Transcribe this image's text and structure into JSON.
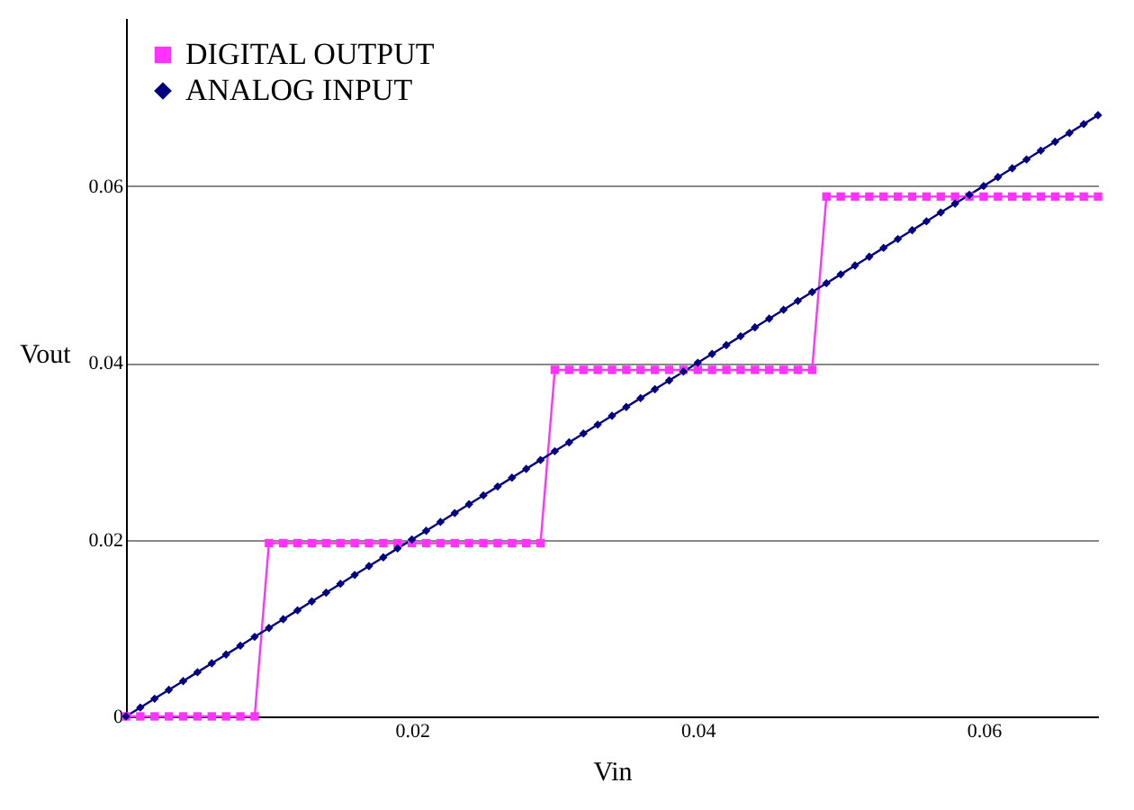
{
  "chart_data": {
    "type": "line",
    "xlabel": "Vin",
    "ylabel": "Vout",
    "x": [
      0,
      0.001,
      0.002,
      0.003,
      0.004,
      0.005,
      0.006,
      0.007,
      0.008,
      0.009,
      0.01,
      0.011,
      0.012,
      0.013,
      0.014,
      0.015,
      0.016,
      0.017,
      0.018,
      0.019,
      0.02,
      0.021,
      0.022,
      0.023,
      0.024,
      0.025,
      0.026,
      0.027,
      0.028,
      0.029,
      0.03,
      0.031,
      0.032,
      0.033,
      0.034,
      0.035,
      0.036,
      0.037,
      0.038,
      0.039,
      0.04,
      0.041,
      0.042,
      0.043,
      0.044,
      0.045,
      0.046,
      0.047,
      0.048,
      0.049,
      0.05,
      0.051,
      0.052,
      0.053,
      0.054,
      0.055,
      0.056,
      0.057,
      0.058,
      0.059,
      0.06,
      0.061,
      0.062,
      0.063,
      0.064,
      0.065,
      0.066,
      0.067,
      0.068
    ],
    "series": [
      {
        "name": "DIGITAL OUTPUT",
        "color": "#ff33ff",
        "marker": "square",
        "values": [
          0,
          0,
          0,
          0,
          0,
          0,
          0,
          0,
          0,
          0,
          0.0196,
          0.0196,
          0.0196,
          0.0196,
          0.0196,
          0.0196,
          0.0196,
          0.0196,
          0.0196,
          0.0196,
          0.0196,
          0.0196,
          0.0196,
          0.0196,
          0.0196,
          0.0196,
          0.0196,
          0.0196,
          0.0196,
          0.0196,
          0.0392,
          0.0392,
          0.0392,
          0.0392,
          0.0392,
          0.0392,
          0.0392,
          0.0392,
          0.0392,
          0.0392,
          0.0392,
          0.0392,
          0.0392,
          0.0392,
          0.0392,
          0.0392,
          0.0392,
          0.0392,
          0.0392,
          0.0588,
          0.0588,
          0.0588,
          0.0588,
          0.0588,
          0.0588,
          0.0588,
          0.0588,
          0.0588,
          0.0588,
          0.0588,
          0.0588,
          0.0588,
          0.0588,
          0.0588,
          0.0588,
          0.0588,
          0.0588,
          0.0588,
          0.0588
        ]
      },
      {
        "name": "ANALOG INPUT",
        "color": "#000080",
        "marker": "diamond",
        "values": [
          0,
          0.001,
          0.002,
          0.003,
          0.004,
          0.005,
          0.006,
          0.007,
          0.008,
          0.009,
          0.01,
          0.011,
          0.012,
          0.013,
          0.014,
          0.015,
          0.016,
          0.017,
          0.018,
          0.019,
          0.02,
          0.021,
          0.022,
          0.023,
          0.024,
          0.025,
          0.026,
          0.027,
          0.028,
          0.029,
          0.03,
          0.031,
          0.032,
          0.033,
          0.034,
          0.035,
          0.036,
          0.037,
          0.038,
          0.039,
          0.04,
          0.041,
          0.042,
          0.043,
          0.044,
          0.045,
          0.046,
          0.047,
          0.048,
          0.049,
          0.05,
          0.051,
          0.052,
          0.053,
          0.054,
          0.055,
          0.056,
          0.057,
          0.058,
          0.059,
          0.06,
          0.061,
          0.062,
          0.063,
          0.064,
          0.065,
          0.066,
          0.067,
          0.068
        ]
      }
    ],
    "xlim": [
      0,
      0.068
    ],
    "xticks": [
      0.02,
      0.04,
      0.06
    ],
    "ylim": [
      0,
      0.079
    ],
    "yticks": [
      0,
      0.02,
      0.04,
      0.06
    ],
    "grid": "y",
    "legend": "top left",
    "line_style": "solid"
  }
}
